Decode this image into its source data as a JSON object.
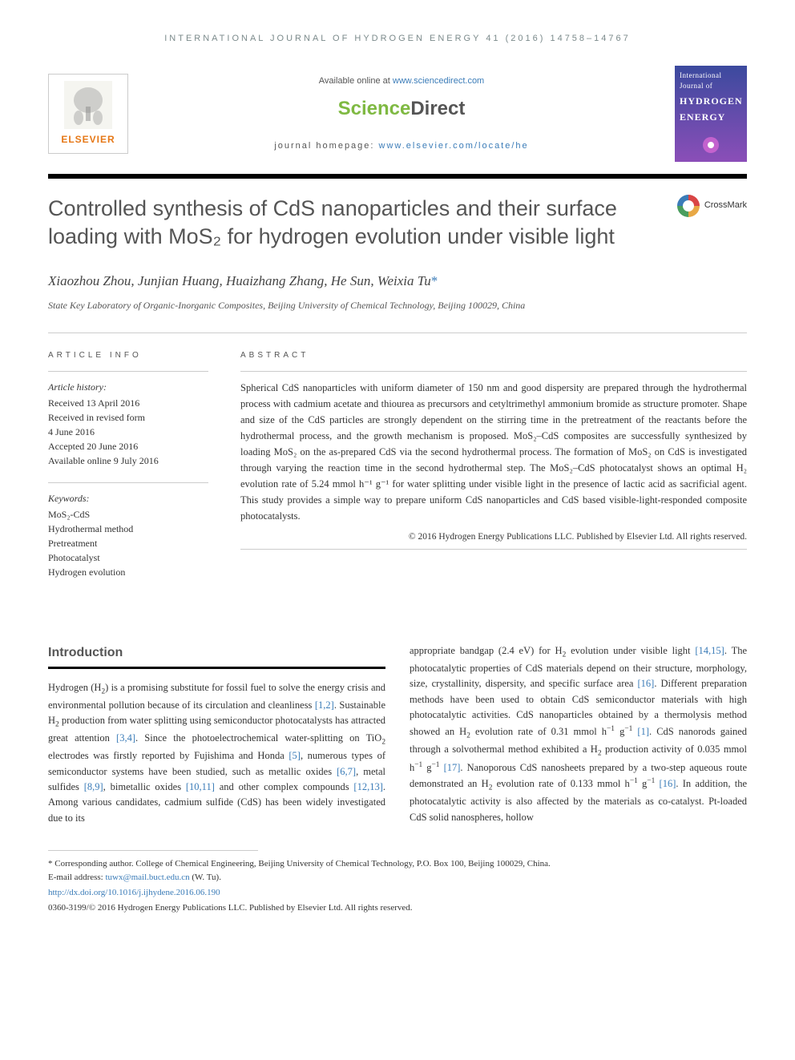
{
  "journal_header": "INTERNATIONAL JOURNAL OF HYDROGEN ENERGY 41 (2016) 14758–14767",
  "available_online": {
    "prefix": "Available online at ",
    "url": "www.sciencedirect.com"
  },
  "sciencedirect": {
    "science": "Science",
    "direct": "Direct"
  },
  "homepage": {
    "prefix": "journal homepage: ",
    "url": "www.elsevier.com/locate/he"
  },
  "elsevier_label": "ELSEVIER",
  "journal_cover": {
    "subtitle": "International Journal of",
    "title1": "HYDROGEN",
    "title2": "ENERGY"
  },
  "article_title": "Controlled synthesis of CdS nanoparticles and their surface loading with MoS₂ for hydrogen evolution under visible light",
  "crossmark_label": "CrossMark",
  "authors": "Xiaozhou Zhou, Junjian Huang, Huaizhang Zhang, He Sun, Weixia Tu",
  "corr_mark": "*",
  "affiliation": "State Key Laboratory of Organic-Inorganic Composites, Beijing University of Chemical Technology, Beijing 100029, China",
  "article_info": {
    "header": "ARTICLE INFO",
    "history_label": "Article history:",
    "history": [
      "Received 13 April 2016",
      "Received in revised form",
      "4 June 2016",
      "Accepted 20 June 2016",
      "Available online 9 July 2016"
    ],
    "keywords_label": "Keywords:",
    "keywords": [
      "MoS₂-CdS",
      "Hydrothermal method",
      "Pretreatment",
      "Photocatalyst",
      "Hydrogen evolution"
    ]
  },
  "abstract": {
    "header": "ABSTRACT",
    "text": "Spherical CdS nanoparticles with uniform diameter of 150 nm and good dispersity are prepared through the hydrothermal process with cadmium acetate and thiourea as precursors and cetyltrimethyl ammonium bromide as structure promoter. Shape and size of the CdS particles are strongly dependent on the stirring time in the pretreatment of the reactants before the hydrothermal process, and the growth mechanism is proposed. MoS₂–CdS composites are successfully synthesized by loading MoS₂ on the as-prepared CdS via the second hydrothermal process. The formation of MoS₂ on CdS is investigated through varying the reaction time in the second hydrothermal step. The MoS₂–CdS photocatalyst shows an optimal H₂ evolution rate of 5.24 mmol h⁻¹ g⁻¹ for water splitting under visible light in the presence of lactic acid as sacrificial agent. This study provides a simple way to prepare uniform CdS nanoparticles and CdS based visible-light-responded composite photocatalysts.",
    "copyright": "© 2016 Hydrogen Energy Publications LLC. Published by Elsevier Ltd. All rights reserved."
  },
  "introduction": {
    "heading": "Introduction",
    "col1_html": "Hydrogen (H<sub>2</sub>) is a promising substitute for fossil fuel to solve the energy crisis and environmental pollution because of its circulation and cleanliness <span class='ref-link'>[1,2]</span>. Sustainable H<sub>2</sub> production from water splitting using semiconductor photocatalysts has attracted great attention <span class='ref-link'>[3,4]</span>. Since the photoelectrochemical water-splitting on TiO<sub>2</sub> electrodes was firstly reported by Fujishima and Honda <span class='ref-link'>[5]</span>, numerous types of semiconductor systems have been studied, such as metallic oxides <span class='ref-link'>[6,7]</span>, metal sulfides <span class='ref-link'>[8,9]</span>, bimetallic oxides <span class='ref-link'>[10,11]</span> and other complex compounds <span class='ref-link'>[12,13]</span>. Among various candidates, cadmium sulfide (CdS) has been widely investigated due to its",
    "col2_html": "appropriate bandgap (2.4 eV) for H<sub>2</sub> evolution under visible light <span class='ref-link'>[14,15]</span>. The photocatalytic properties of CdS materials depend on their structure, morphology, size, crystallinity, dispersity, and specific surface area <span class='ref-link'>[16]</span>. Different preparation methods have been used to obtain CdS semiconductor materials with high photocatalytic activities. CdS nanoparticles obtained by a thermolysis method showed an H<sub>2</sub> evolution rate of 0.31 mmol h<sup>−1</sup> g<sup>−1</sup> <span class='ref-link'>[1]</span>. CdS nanorods gained through a solvothermal method exhibited a H<sub>2</sub> production activity of 0.035 mmol h<sup>−1</sup> g<sup>−1</sup> <span class='ref-link'>[17]</span>. Nanoporous CdS nanosheets prepared by a two-step aqueous route demonstrated an H<sub>2</sub> evolution rate of 0.133 mmol h<sup>−1</sup> g<sup>−1</sup> <span class='ref-link'>[16]</span>. In addition, the photocatalytic activity is also affected by the materials as co-catalyst. Pt-loaded CdS solid nanospheres, hollow"
  },
  "footnote": {
    "corr_text": "* Corresponding author. College of Chemical Engineering, Beijing University of Chemical Technology, P.O. Box 100, Beijing 100029, China.",
    "email_label": "E-mail address: ",
    "email": "tuwx@mail.buct.edu.cn",
    "email_suffix": " (W. Tu).",
    "doi": "http://dx.doi.org/10.1016/j.ijhydene.2016.06.190",
    "issn": "0360-3199/© 2016 Hydrogen Energy Publications LLC. Published by Elsevier Ltd. All rights reserved."
  },
  "colors": {
    "link": "#3b7cb8",
    "elsevier_orange": "#e67817",
    "sd_green": "#7fb942",
    "text_gray": "#555555"
  }
}
